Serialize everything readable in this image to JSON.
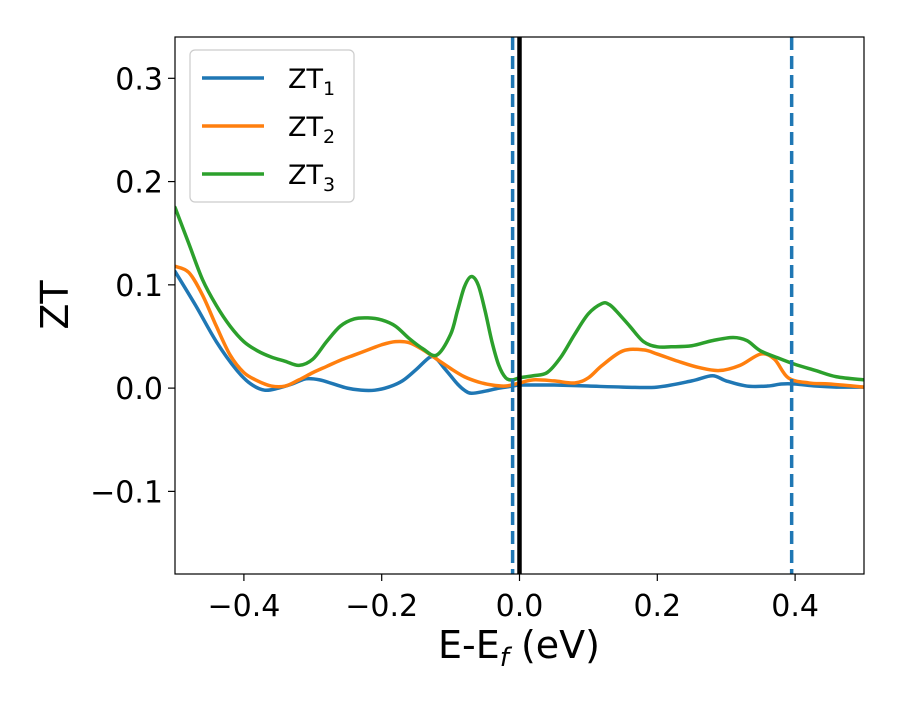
{
  "chart_data": {
    "type": "line",
    "title": "",
    "xlabel_main": "E-E",
    "xlabel_sub": "f",
    "xlabel_tail": " (eV)",
    "ylabel": "ZT",
    "xlim": [
      -0.5,
      0.5
    ],
    "ylim": [
      -0.18,
      0.34
    ],
    "grid": false,
    "legend_position": "upper-left",
    "x_ticks": [
      {
        "value": -0.4,
        "label": "−0.4"
      },
      {
        "value": -0.2,
        "label": "−0.2"
      },
      {
        "value": 0.0,
        "label": "0.0"
      },
      {
        "value": 0.2,
        "label": "0.2"
      },
      {
        "value": 0.4,
        "label": "0.4"
      }
    ],
    "y_ticks": [
      {
        "value": -0.1,
        "label": "−0.1"
      },
      {
        "value": 0.0,
        "label": "0.0"
      },
      {
        "value": 0.1,
        "label": "0.1"
      },
      {
        "value": 0.2,
        "label": "0.2"
      },
      {
        "value": 0.3,
        "label": "0.3"
      }
    ],
    "series": [
      {
        "name": "ZT",
        "name_sub": "1",
        "color": "#1f77b4",
        "x": [
          -0.5,
          -0.47,
          -0.44,
          -0.41,
          -0.39,
          -0.37,
          -0.35,
          -0.33,
          -0.31,
          -0.29,
          -0.27,
          -0.25,
          -0.23,
          -0.21,
          -0.19,
          -0.17,
          -0.15,
          -0.13,
          -0.12,
          -0.11,
          -0.1,
          -0.09,
          -0.08,
          -0.07,
          -0.05,
          -0.03,
          -0.01,
          0.0,
          0.02,
          0.05,
          0.1,
          0.15,
          0.2,
          0.25,
          0.28,
          0.3,
          0.33,
          0.36,
          0.38,
          0.4,
          0.43,
          0.46,
          0.5
        ],
        "y": [
          0.113,
          0.08,
          0.045,
          0.017,
          0.004,
          -0.002,
          0.0,
          0.004,
          0.009,
          0.008,
          0.004,
          0.0,
          -0.002,
          -0.002,
          0.001,
          0.007,
          0.018,
          0.03,
          0.028,
          0.02,
          0.012,
          0.004,
          -0.002,
          -0.005,
          -0.003,
          0.0,
          0.002,
          0.003,
          0.003,
          0.003,
          0.002,
          0.001,
          0.001,
          0.007,
          0.012,
          0.007,
          0.002,
          0.002,
          0.004,
          0.004,
          0.002,
          0.001,
          0.001
        ]
      },
      {
        "name": "ZT",
        "name_sub": "2",
        "color": "#ff7f0e",
        "x": [
          -0.5,
          -0.48,
          -0.46,
          -0.44,
          -0.42,
          -0.4,
          -0.38,
          -0.36,
          -0.34,
          -0.32,
          -0.3,
          -0.28,
          -0.26,
          -0.24,
          -0.22,
          -0.2,
          -0.18,
          -0.16,
          -0.14,
          -0.12,
          -0.1,
          -0.08,
          -0.06,
          -0.04,
          -0.02,
          0.0,
          0.02,
          0.05,
          0.08,
          0.1,
          0.12,
          0.15,
          0.18,
          0.2,
          0.23,
          0.26,
          0.29,
          0.32,
          0.35,
          0.37,
          0.39,
          0.42,
          0.45,
          0.5
        ],
        "y": [
          0.118,
          0.112,
          0.09,
          0.06,
          0.032,
          0.015,
          0.007,
          0.002,
          0.002,
          0.008,
          0.015,
          0.021,
          0.027,
          0.032,
          0.037,
          0.042,
          0.045,
          0.044,
          0.037,
          0.028,
          0.019,
          0.011,
          0.006,
          0.003,
          0.002,
          0.005,
          0.008,
          0.007,
          0.005,
          0.01,
          0.022,
          0.036,
          0.037,
          0.033,
          0.026,
          0.02,
          0.017,
          0.022,
          0.033,
          0.028,
          0.01,
          0.005,
          0.004,
          0.001
        ]
      },
      {
        "name": "ZT",
        "name_sub": "3",
        "color": "#2ca02c",
        "x": [
          -0.5,
          -0.48,
          -0.46,
          -0.44,
          -0.42,
          -0.4,
          -0.38,
          -0.36,
          -0.34,
          -0.32,
          -0.3,
          -0.28,
          -0.26,
          -0.24,
          -0.22,
          -0.2,
          -0.18,
          -0.16,
          -0.14,
          -0.12,
          -0.1,
          -0.09,
          -0.08,
          -0.07,
          -0.06,
          -0.05,
          -0.04,
          -0.03,
          -0.02,
          -0.01,
          0.0,
          0.02,
          0.04,
          0.06,
          0.08,
          0.1,
          0.12,
          0.13,
          0.14,
          0.16,
          0.18,
          0.2,
          0.22,
          0.25,
          0.28,
          0.31,
          0.33,
          0.35,
          0.38,
          0.4,
          0.43,
          0.46,
          0.5
        ],
        "y": [
          0.175,
          0.14,
          0.105,
          0.08,
          0.06,
          0.045,
          0.036,
          0.03,
          0.026,
          0.022,
          0.028,
          0.045,
          0.06,
          0.067,
          0.068,
          0.066,
          0.06,
          0.048,
          0.038,
          0.032,
          0.052,
          0.075,
          0.098,
          0.108,
          0.1,
          0.075,
          0.045,
          0.022,
          0.01,
          0.008,
          0.01,
          0.012,
          0.015,
          0.03,
          0.052,
          0.072,
          0.082,
          0.081,
          0.075,
          0.06,
          0.045,
          0.04,
          0.04,
          0.041,
          0.046,
          0.049,
          0.046,
          0.036,
          0.028,
          0.023,
          0.017,
          0.011,
          0.008
        ]
      }
    ],
    "vertical_lines": [
      {
        "x": -0.01,
        "style": "dashed",
        "color": "#1f77b4"
      },
      {
        "x": 0.0,
        "style": "solid",
        "color": "#000000"
      },
      {
        "x": 0.395,
        "style": "dashed",
        "color": "#1f77b4"
      }
    ]
  }
}
